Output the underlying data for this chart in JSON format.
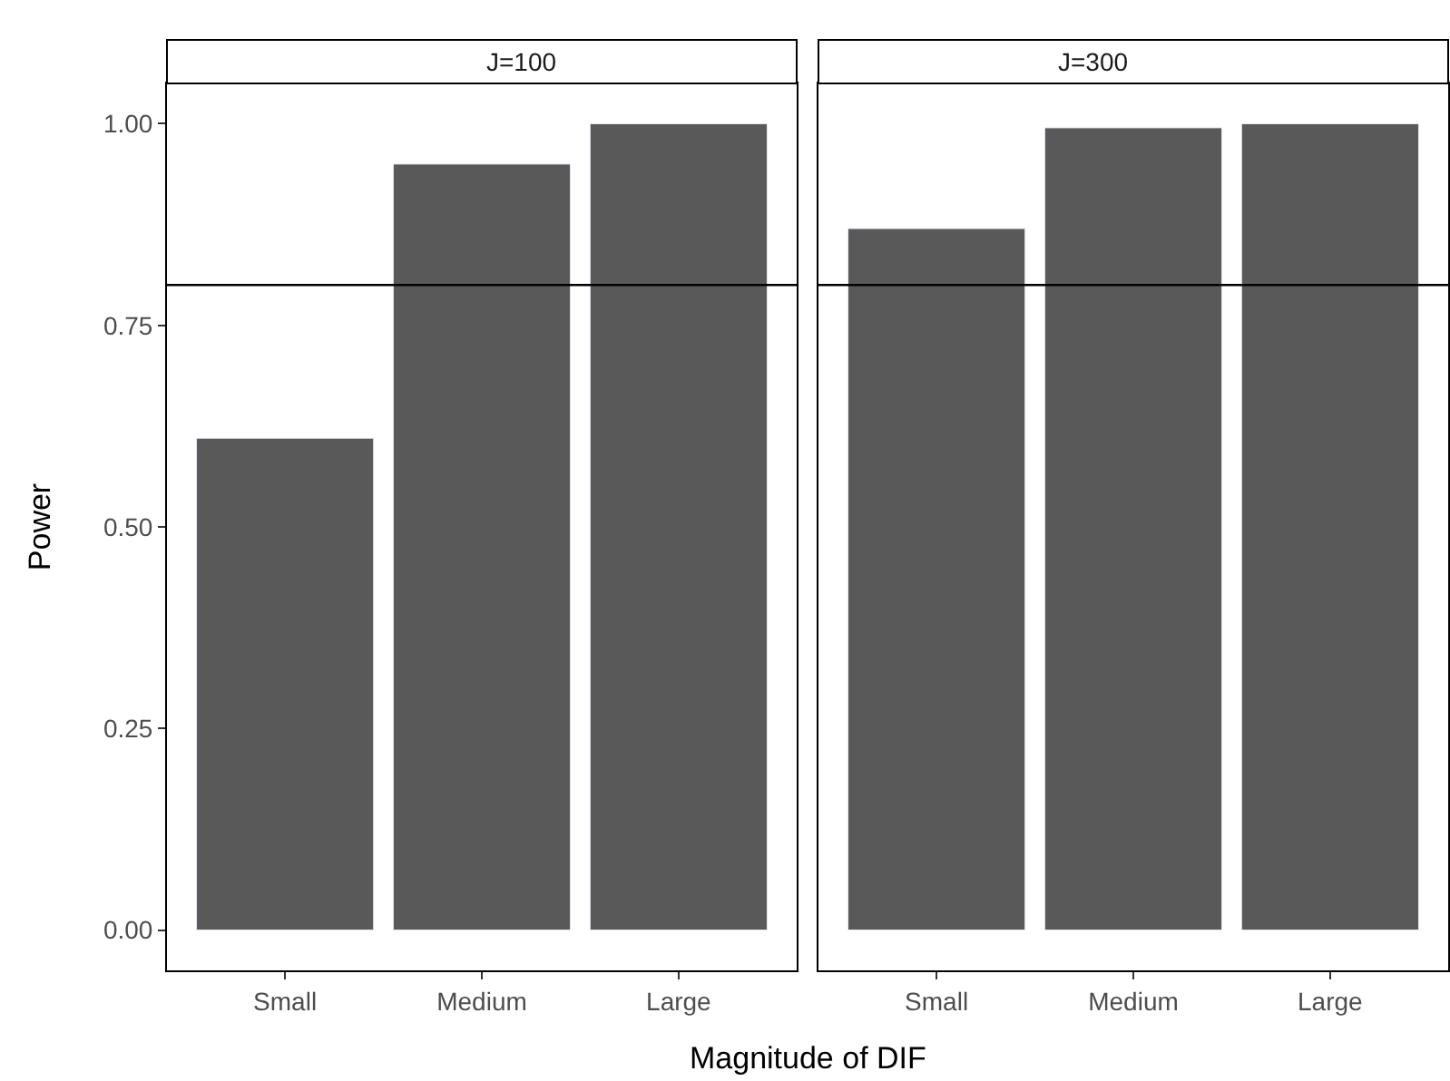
{
  "chart_data": [
    {
      "type": "bar",
      "title": "J=100",
      "xlabel": "Magnitude of DIF",
      "ylabel": "Power",
      "categories": [
        "Small",
        "Medium",
        "Large"
      ],
      "series": [
        {
          "color": "#595959",
          "values": [
            0.61,
            0.95,
            1.0
          ]
        }
      ],
      "ylim": [
        -0.05,
        1.05
      ],
      "yticks": [
        {
          "value": 0,
          "label": "0.00"
        },
        {
          "value": 0.25,
          "label": "0.25"
        },
        {
          "value": 0.5,
          "label": "0.50"
        },
        {
          "value": 0.75,
          "label": "0.75"
        },
        {
          "value": 1,
          "label": "1.00"
        }
      ],
      "ref_lines": [
        {
          "axis": "y",
          "value": 0.8,
          "color": "#000000"
        }
      ]
    },
    {
      "type": "bar",
      "title": "J=300",
      "categories": [
        "Small",
        "Medium",
        "Large"
      ],
      "series": [
        {
          "color": "#595959",
          "values": [
            0.87,
            0.995,
            1.0
          ]
        }
      ],
      "ylim": [
        -0.05,
        1.05
      ],
      "ref_lines": [
        {
          "axis": "y",
          "value": 0.8,
          "color": "#000000"
        }
      ],
      "tick_labels": "x"
    }
  ]
}
